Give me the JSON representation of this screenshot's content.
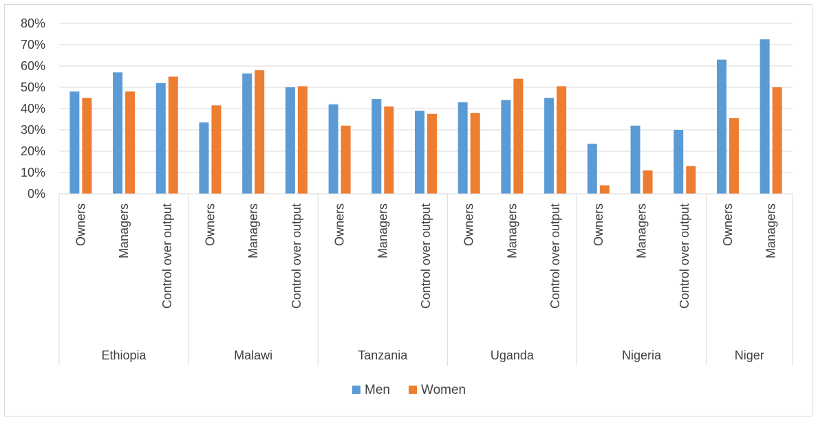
{
  "chart_data": {
    "type": "bar",
    "title": "",
    "xlabel": "",
    "ylabel": "",
    "ylim": [
      0,
      0.8
    ],
    "y_tick_labels": [
      "0%",
      "10%",
      "20%",
      "30%",
      "40%",
      "50%",
      "60%",
      "70%",
      "80%"
    ],
    "y_tick_values": [
      0,
      0.1,
      0.2,
      0.3,
      0.4,
      0.5,
      0.6,
      0.7,
      0.8
    ],
    "grid": true,
    "legend_position": "bottom",
    "groups": [
      {
        "label": "Ethiopia",
        "categories": [
          "Owners",
          "Managers",
          "Control over output"
        ]
      },
      {
        "label": "Malawi",
        "categories": [
          "Owners",
          "Managers",
          "Control over output"
        ]
      },
      {
        "label": "Tanzania",
        "categories": [
          "Owners",
          "Managers",
          "Control over output"
        ]
      },
      {
        "label": "Uganda",
        "categories": [
          "Owners",
          "Managers",
          "Control over output"
        ]
      },
      {
        "label": "Nigeria",
        "categories": [
          "Owners",
          "Managers",
          "Control over output"
        ]
      },
      {
        "label": "Niger",
        "categories": [
          "Owners",
          "Managers"
        ]
      }
    ],
    "series": [
      {
        "name": "Men",
        "color": "#5b9bd5",
        "values": [
          0.48,
          0.57,
          0.52,
          0.335,
          0.565,
          0.5,
          0.42,
          0.445,
          0.39,
          0.43,
          0.44,
          0.45,
          0.235,
          0.32,
          0.3,
          0.63,
          0.725
        ]
      },
      {
        "name": "Women",
        "color": "#ed7d31",
        "values": [
          0.45,
          0.48,
          0.55,
          0.415,
          0.58,
          0.505,
          0.32,
          0.41,
          0.375,
          0.38,
          0.54,
          0.505,
          0.04,
          0.11,
          0.13,
          0.355,
          0.5
        ]
      }
    ]
  }
}
